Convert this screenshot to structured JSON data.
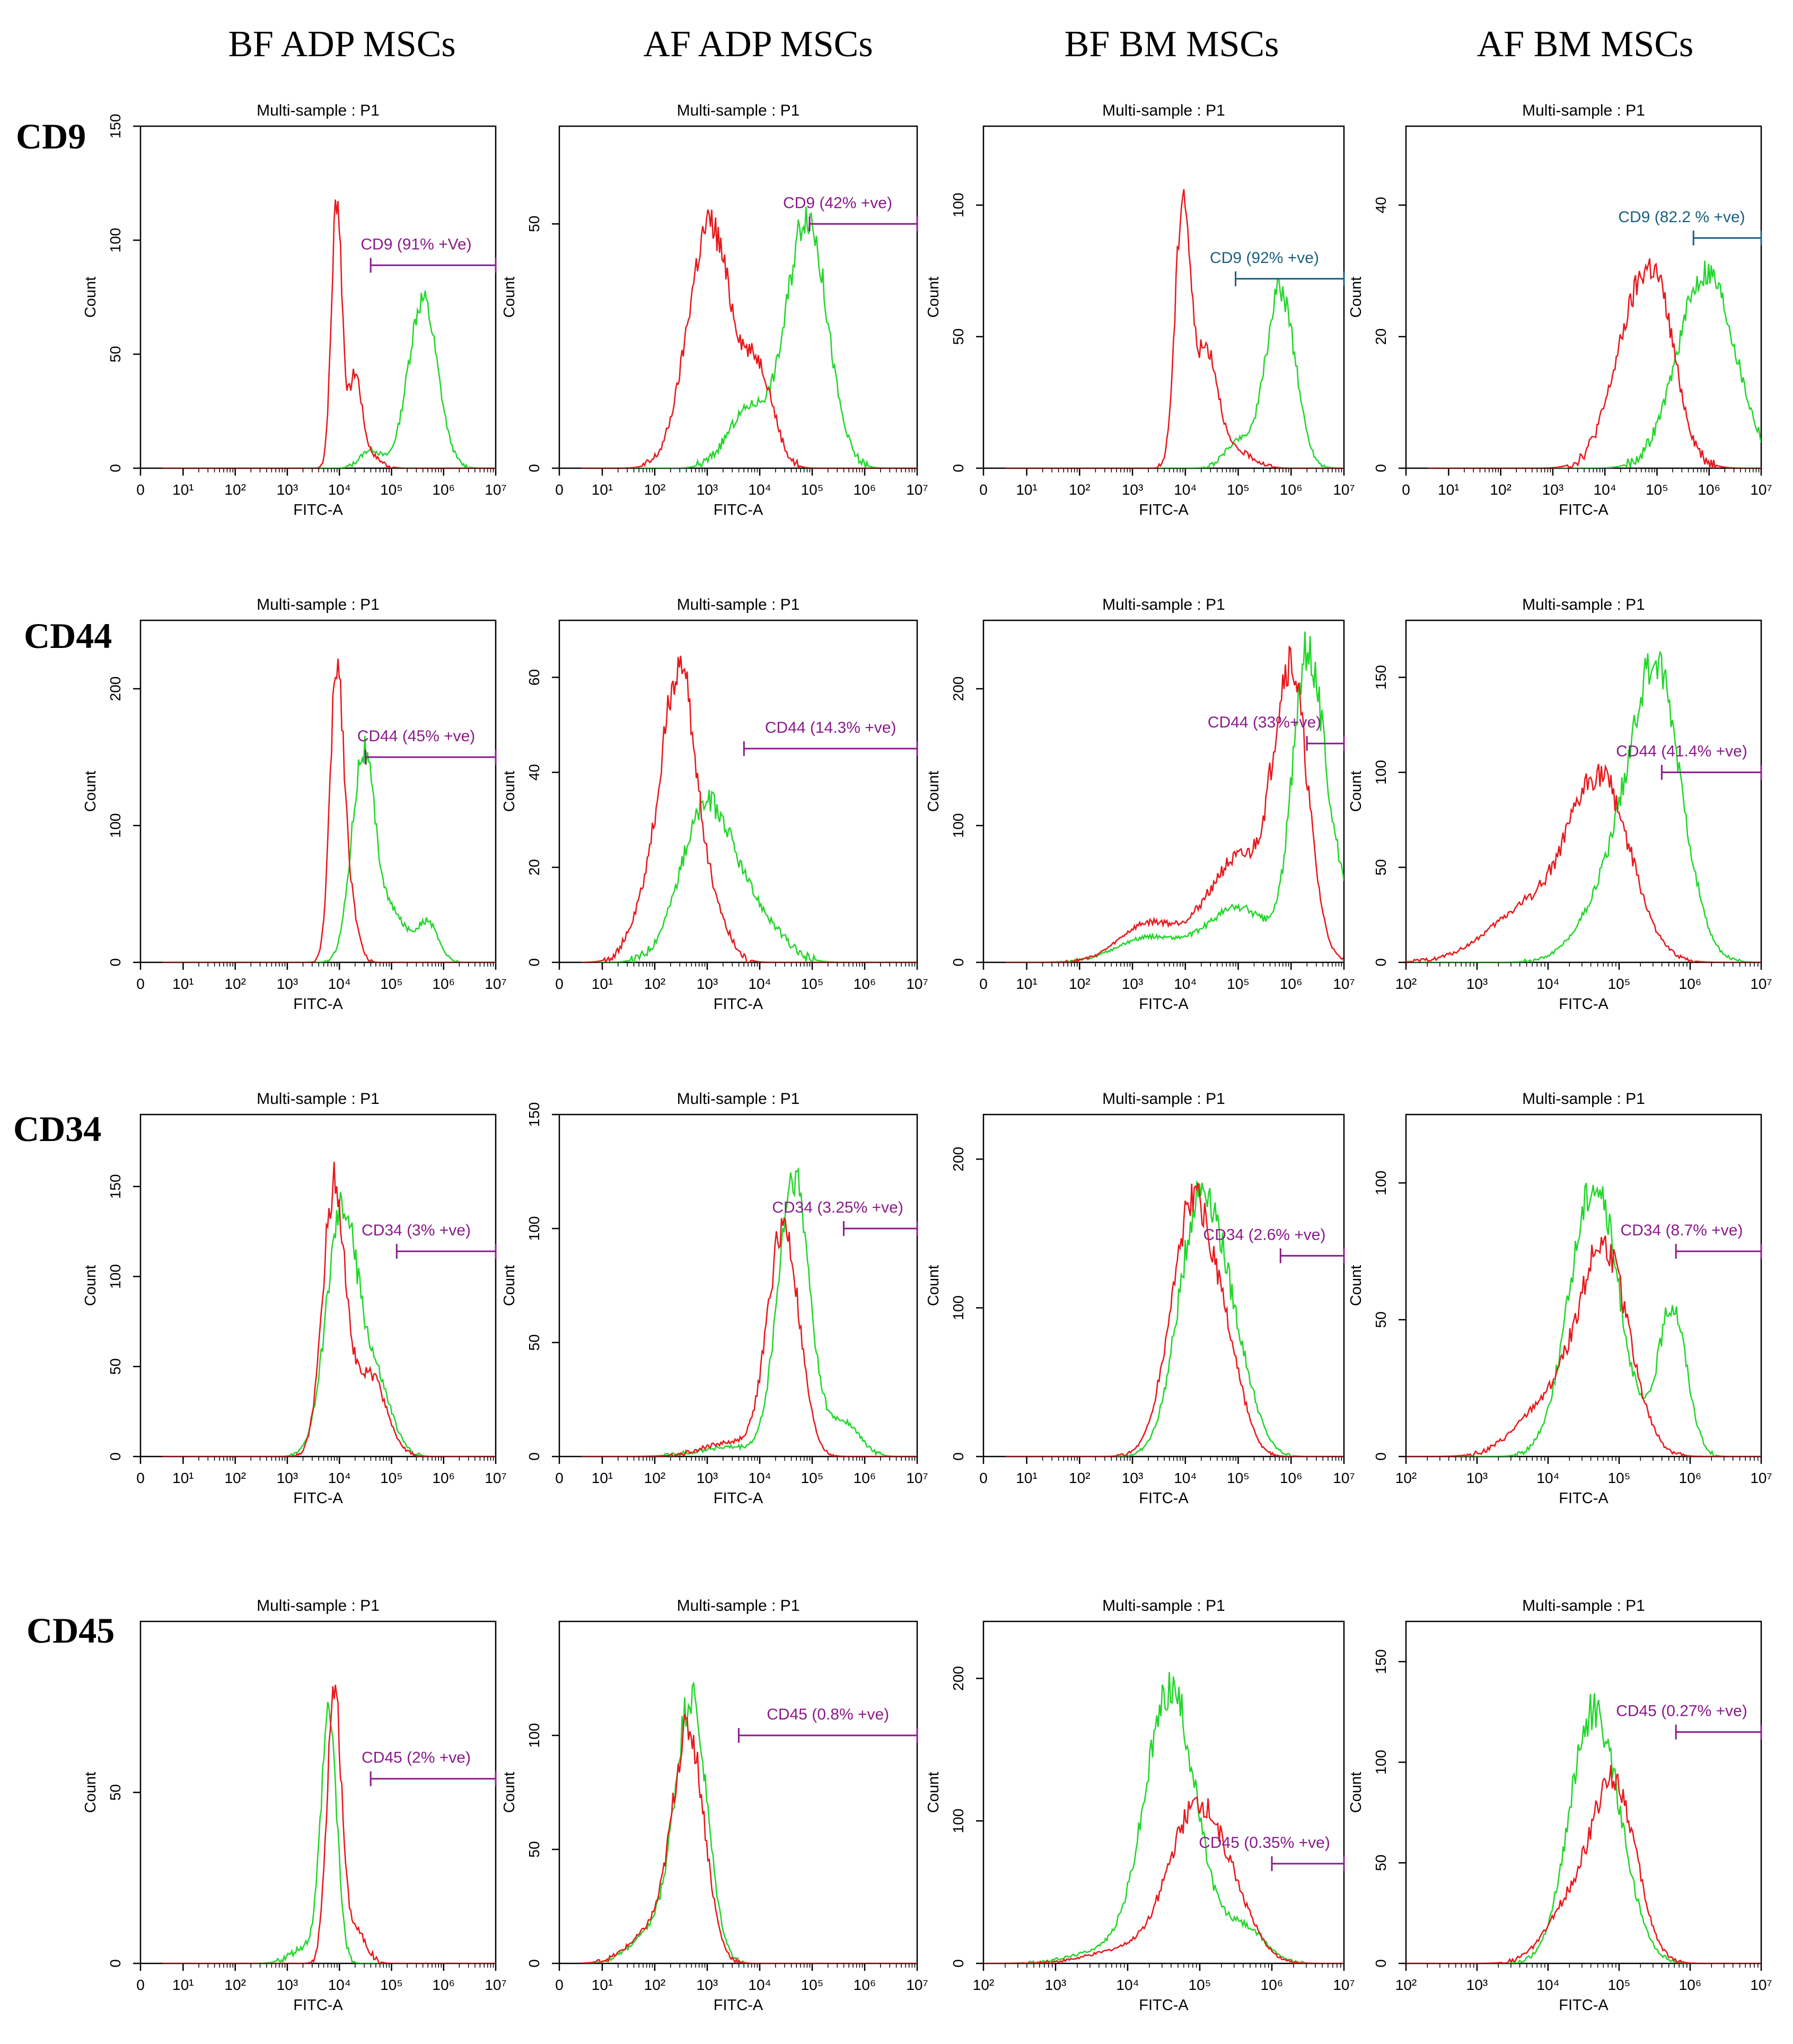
{
  "chart_data": {
    "type": "histogram-grid",
    "columns": [
      "BF ADP MSCs",
      "AF ADP MSCs",
      "BF BM MSCs",
      "AF BM MSCs"
    ],
    "rows": [
      "CD9",
      "CD44",
      "CD34",
      "CD45"
    ],
    "colors": {
      "control": "#e8181c",
      "stained": "#22d62a",
      "gate_purple": "#8b1a8b",
      "gate_teal": "#1b5f80"
    },
    "panels": [
      {
        "id": "CD9-BFADP",
        "title": "Multi-sample : P1",
        "xlabel": "FITC-A",
        "ylabel": "Count",
        "xscale": "biexp",
        "ymax": 150,
        "yticks": [
          0,
          50,
          100,
          150
        ],
        "gate": {
          "label": "CD9 (91% +Ve)",
          "start": 4.6,
          "end": 7.2,
          "y": 89,
          "color": "#8b1a8b"
        },
        "series": [
          {
            "name": "control",
            "peaks": [
              [
                3.95,
                0.1,
                118
              ],
              [
                4.3,
                0.12,
                35
              ],
              [
                4.45,
                0.25,
                8
              ]
            ]
          },
          {
            "name": "stained",
            "peaks": [
              [
                5.6,
                0.28,
                74
              ],
              [
                4.6,
                0.2,
                8
              ]
            ]
          }
        ]
      },
      {
        "id": "CD9-AFADP",
        "title": "Multi-sample : P1",
        "xlabel": "FITC-A",
        "ylabel": "Count",
        "xscale": "biexp",
        "ymax": 70,
        "yticks": [
          0,
          50
        ],
        "gate": {
          "label": "CD9 (42% +ve)",
          "start": 4.95,
          "end": 7.0,
          "y": 50,
          "color": "#8b1a8b"
        },
        "series": [
          {
            "name": "control",
            "peaks": [
              [
                3.05,
                0.42,
                50
              ],
              [
                4.0,
                0.28,
                18
              ]
            ]
          },
          {
            "name": "stained",
            "peaks": [
              [
                4.9,
                0.38,
                52
              ],
              [
                3.8,
                0.4,
                12
              ]
            ]
          }
        ]
      },
      {
        "id": "CD9-BFBM",
        "title": "Multi-sample : P1",
        "xlabel": "FITC-A",
        "ylabel": "Count",
        "xscale": "biexp",
        "ymax": 130,
        "yticks": [
          0,
          50,
          100
        ],
        "gate": {
          "label": "CD9 (92% +ve)",
          "start": 4.95,
          "end": 7.2,
          "y": 72,
          "color": "#1b5f80"
        },
        "series": [
          {
            "name": "control",
            "peaks": [
              [
                3.95,
                0.14,
                100
              ],
              [
                4.4,
                0.22,
                45
              ],
              [
                5.0,
                0.3,
                6
              ]
            ]
          },
          {
            "name": "stained",
            "peaks": [
              [
                5.8,
                0.28,
                68
              ],
              [
                5.0,
                0.25,
                10
              ]
            ]
          }
        ]
      },
      {
        "id": "CD9-AFBM",
        "title": "Multi-sample : P1",
        "xlabel": "FITC-A",
        "ylabel": "Count",
        "xscale": "biexp",
        "ymax": 52,
        "yticks": [
          0,
          20,
          40
        ],
        "gate": {
          "label": "CD9 (82.2 % +ve)",
          "start": 5.7,
          "end": 7.0,
          "y": 35,
          "color": "#1b5f80"
        },
        "series": [
          {
            "name": "control",
            "peaks": [
              [
                4.7,
                0.5,
                26
              ],
              [
                5.1,
                0.3,
                8
              ]
            ]
          },
          {
            "name": "stained",
            "peaks": [
              [
                5.95,
                0.55,
                30
              ]
            ]
          }
        ]
      },
      {
        "id": "CD44-BFADP",
        "title": "Multi-sample : P1",
        "xlabel": "FITC-A",
        "ylabel": "Count",
        "xscale": "biexp",
        "ymax": 250,
        "yticks": [
          0,
          100,
          200
        ],
        "gate": {
          "label": "CD44 (45% +ve)",
          "start": 4.5,
          "end": 7.2,
          "y": 150,
          "color": "#8b1a8b"
        },
        "series": [
          {
            "name": "control",
            "peaks": [
              [
                3.95,
                0.13,
                210
              ],
              [
                4.2,
                0.15,
                40
              ]
            ]
          },
          {
            "name": "stained",
            "peaks": [
              [
                4.45,
                0.22,
                150
              ],
              [
                5.7,
                0.2,
                28
              ],
              [
                5.0,
                0.3,
                35
              ]
            ]
          }
        ]
      },
      {
        "id": "CD44-AFADP",
        "title": "Multi-sample : P1",
        "xlabel": "FITC-A",
        "ylabel": "Count",
        "xscale": "biexp",
        "ymax": 72,
        "yticks": [
          0,
          20,
          40,
          60
        ],
        "gate": {
          "label": "CD44 (14.3% +ve)",
          "start": 3.7,
          "end": 7.0,
          "y": 45,
          "color": "#8b1a8b"
        },
        "series": [
          {
            "name": "control",
            "peaks": [
              [
                2.5,
                0.3,
                52
              ],
              [
                2.05,
                0.38,
                18
              ],
              [
                3.1,
                0.3,
                10
              ]
            ]
          },
          {
            "name": "stained",
            "peaks": [
              [
                3.0,
                0.5,
                33
              ],
              [
                4.0,
                0.45,
                8
              ]
            ]
          }
        ]
      },
      {
        "id": "CD44-BFBM",
        "title": "Multi-sample : P1",
        "xlabel": "FITC-A",
        "ylabel": "Count",
        "xscale": "biexp",
        "ymax": 250,
        "yticks": [
          0,
          100,
          200
        ],
        "gate": {
          "label": "CD44 (33%+ve)",
          "start": 6.3,
          "end": 7.2,
          "y": 160,
          "color": "#8b1a8b"
        },
        "series": [
          {
            "name": "control",
            "peaks": [
              [
                6.0,
                0.32,
                200
              ],
              [
                5.0,
                0.6,
                75
              ],
              [
                3.3,
                0.55,
                28
              ]
            ]
          },
          {
            "name": "stained",
            "peaks": [
              [
                6.3,
                0.28,
                210
              ],
              [
                6.8,
                0.3,
                60
              ],
              [
                5.0,
                0.6,
                40
              ],
              [
                3.3,
                0.6,
                18
              ]
            ]
          }
        ]
      },
      {
        "id": "CD44-AFBM",
        "title": "Multi-sample : P1",
        "xlabel": "FITC-A",
        "ylabel": "Count",
        "xscale": "log",
        "xmin": 2,
        "ymax": 180,
        "yticks": [
          0,
          50,
          100,
          150
        ],
        "gate": {
          "label": "CD44 (41.4% +ve)",
          "start": 5.6,
          "end": 7.0,
          "y": 100,
          "color": "#8b1a8b"
        },
        "series": [
          {
            "name": "control",
            "peaks": [
              [
                4.75,
                0.42,
                90
              ],
              [
                3.8,
                0.6,
                30
              ]
            ]
          },
          {
            "name": "stained",
            "peaks": [
              [
                5.55,
                0.35,
                135
              ],
              [
                5.0,
                0.45,
                45
              ]
            ]
          }
        ]
      },
      {
        "id": "CD34-BFADP",
        "title": "Multi-sample : P1",
        "xlabel": "FITC-A",
        "ylabel": "Count",
        "xscale": "biexp",
        "ymax": 190,
        "yticks": [
          0,
          50,
          100,
          150
        ],
        "gate": {
          "label": "CD34 (3% +ve)",
          "start": 5.1,
          "end": 7.2,
          "y": 114,
          "color": "#8b1a8b"
        },
        "series": [
          {
            "name": "control",
            "peaks": [
              [
                3.9,
                0.22,
                150
              ],
              [
                4.6,
                0.3,
                45
              ]
            ]
          },
          {
            "name": "stained",
            "peaks": [
              [
                4.05,
                0.3,
                135
              ],
              [
                4.7,
                0.3,
                40
              ]
            ]
          }
        ]
      },
      {
        "id": "CD34-AFADP",
        "title": "Multi-sample : P1",
        "xlabel": "FITC-A",
        "ylabel": "Count",
        "xscale": "biexp",
        "ymax": 150,
        "yticks": [
          0,
          50,
          100,
          150
        ],
        "gate": {
          "label": "CD34 (3.25% +ve)",
          "start": 5.6,
          "end": 7.0,
          "y": 100,
          "color": "#8b1a8b"
        },
        "series": [
          {
            "name": "control",
            "peaks": [
              [
                4.45,
                0.3,
                100
              ],
              [
                3.4,
                0.5,
                6
              ]
            ]
          },
          {
            "name": "stained",
            "peaks": [
              [
                4.65,
                0.3,
                122
              ],
              [
                5.6,
                0.3,
                15
              ],
              [
                3.4,
                0.6,
                4
              ]
            ]
          }
        ]
      },
      {
        "id": "CD34-BFBM",
        "title": "Multi-sample : P1",
        "xlabel": "FITC-A",
        "ylabel": "Count",
        "xscale": "biexp",
        "ymax": 230,
        "yticks": [
          0,
          100,
          200
        ],
        "gate": {
          "label": "CD34 (2.6% +ve)",
          "start": 5.8,
          "end": 7.2,
          "y": 135,
          "color": "#8b1a8b"
        },
        "series": [
          {
            "name": "control",
            "peaks": [
              [
                4.15,
                0.42,
                170
              ],
              [
                4.85,
                0.3,
                40
              ]
            ]
          },
          {
            "name": "stained",
            "peaks": [
              [
                4.3,
                0.42,
                175
              ],
              [
                5.0,
                0.35,
                45
              ]
            ]
          }
        ]
      },
      {
        "id": "CD34-AFBM",
        "title": "Multi-sample : P1",
        "xlabel": "FITC-A",
        "ylabel": "Count",
        "xscale": "log",
        "xmin": 2,
        "ymax": 125,
        "yticks": [
          0,
          50,
          100
        ],
        "gate": {
          "label": "CD34 (8.7% +ve)",
          "start": 5.8,
          "end": 7.0,
          "y": 75,
          "color": "#8b1a8b"
        },
        "series": [
          {
            "name": "control",
            "peaks": [
              [
                4.8,
                0.35,
                72
              ],
              [
                4.05,
                0.45,
                20
              ]
            ]
          },
          {
            "name": "stained",
            "peaks": [
              [
                4.65,
                0.35,
                100
              ],
              [
                5.75,
                0.2,
                55
              ]
            ]
          }
        ]
      },
      {
        "id": "CD45-BFADP",
        "title": "Multi-sample : P1",
        "xlabel": "FITC-A",
        "ylabel": "Count",
        "xscale": "biexp",
        "ymax": 100,
        "yticks": [
          0,
          50
        ],
        "gate": {
          "label": "CD45 (2% +ve)",
          "start": 4.6,
          "end": 7.2,
          "y": 54,
          "color": "#8b1a8b"
        },
        "series": [
          {
            "name": "control",
            "peaks": [
              [
                3.9,
                0.14,
                78
              ],
              [
                4.3,
                0.2,
                10
              ]
            ]
          },
          {
            "name": "stained",
            "peaks": [
              [
                3.8,
                0.15,
                72
              ],
              [
                3.4,
                0.3,
                5
              ]
            ]
          }
        ]
      },
      {
        "id": "CD45-AFADP",
        "title": "Multi-sample : P1",
        "xlabel": "FITC-A",
        "ylabel": "Count",
        "xscale": "biexp",
        "ymax": 150,
        "yticks": [
          0,
          50,
          100
        ],
        "gate": {
          "label": "CD45 (0.8% +ve)",
          "start": 3.6,
          "end": 7.0,
          "y": 100,
          "color": "#8b1a8b"
        },
        "series": [
          {
            "name": "control",
            "peaks": [
              [
                2.65,
                0.3,
                98
              ],
              [
                2.0,
                0.45,
                15
              ]
            ]
          },
          {
            "name": "stained",
            "peaks": [
              [
                2.7,
                0.3,
                112
              ],
              [
                2.05,
                0.45,
                15
              ]
            ]
          }
        ]
      },
      {
        "id": "CD45-BFBM",
        "title": "Multi-sample : P1",
        "xlabel": "FITC-A",
        "ylabel": "Count",
        "xscale": "log",
        "xmin": 2,
        "ymax": 240,
        "yticks": [
          0,
          100,
          200
        ],
        "gate": {
          "label": "CD45 (0.35% +ve)",
          "start": 6.0,
          "end": 7.0,
          "y": 70,
          "color": "#8b1a8b"
        },
        "series": [
          {
            "name": "control",
            "peaks": [
              [
                4.95,
                0.38,
                105
              ],
              [
                5.5,
                0.3,
                25
              ],
              [
                4.0,
                0.5,
                10
              ]
            ]
          },
          {
            "name": "stained",
            "peaks": [
              [
                4.6,
                0.35,
                190
              ],
              [
                5.6,
                0.3,
                25
              ],
              [
                3.8,
                0.5,
                10
              ]
            ]
          }
        ]
      },
      {
        "id": "CD45-AFBM",
        "title": "Multi-sample : P1",
        "xlabel": "FITC-A",
        "ylabel": "Count",
        "xscale": "log",
        "xmin": 2,
        "ymax": 170,
        "yticks": [
          0,
          50,
          100,
          150
        ],
        "gate": {
          "label": "CD45 (0.27% +ve)",
          "start": 5.8,
          "end": 7.0,
          "y": 115,
          "color": "#8b1a8b"
        },
        "series": [
          {
            "name": "control",
            "peaks": [
              [
                4.95,
                0.3,
                85
              ],
              [
                4.35,
                0.35,
                30
              ]
            ]
          },
          {
            "name": "stained",
            "peaks": [
              [
                4.6,
                0.32,
                115
              ],
              [
                5.0,
                0.3,
                25
              ]
            ]
          }
        ]
      }
    ]
  }
}
